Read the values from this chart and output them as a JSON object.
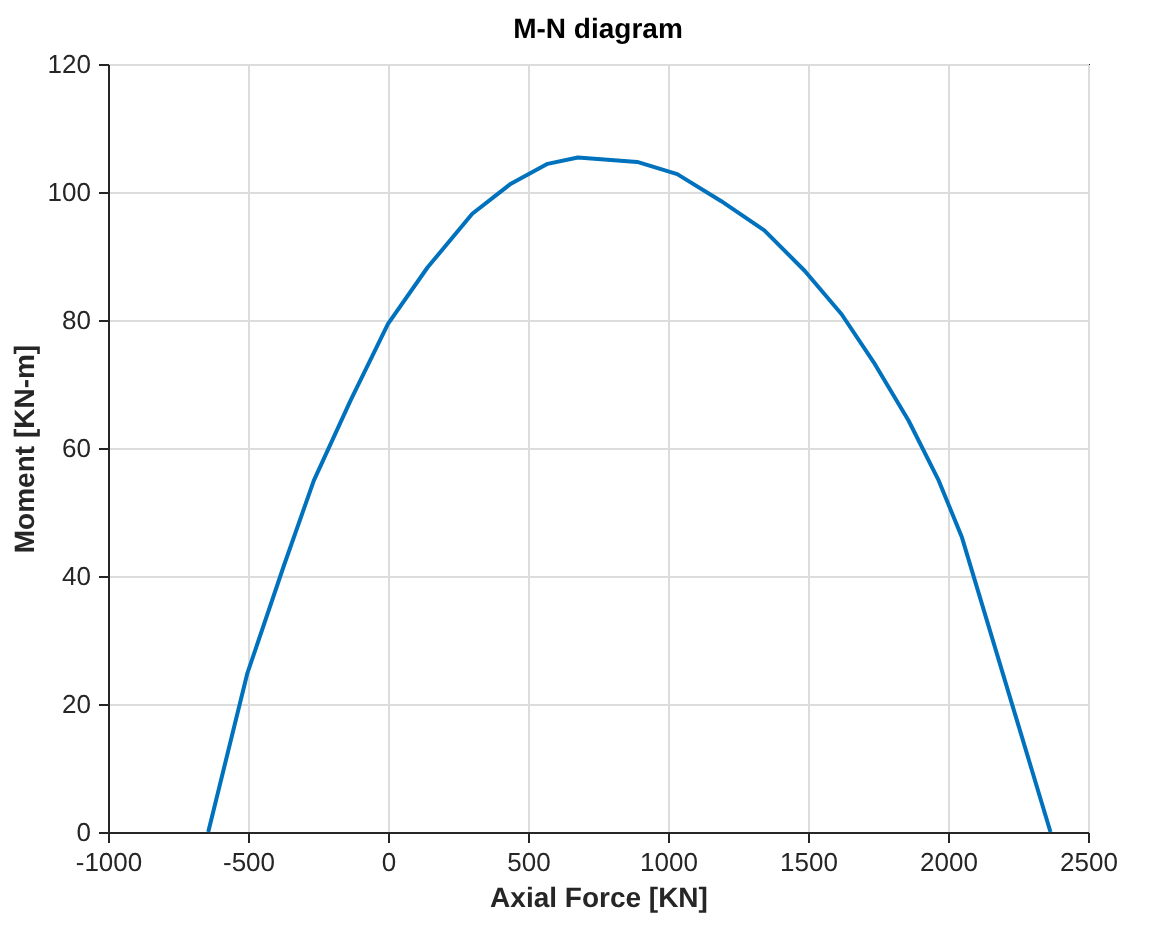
{
  "chart_data": {
    "type": "line",
    "title": "M-N diagram",
    "xlabel": "Axial Force [KN]",
    "ylabel": "Moment [KN-m]",
    "x": [
      -642,
      -503,
      -372,
      -265,
      -134,
      0,
      141,
      301,
      439,
      570,
      678,
      890,
      1033,
      1189,
      1344,
      1488,
      1620,
      1739,
      1859,
      1967,
      2050,
      2366
    ],
    "series": [
      {
        "color": "#0072bd",
        "values": [
          0,
          24.7,
          41.6,
          54.9,
          67.4,
          79.4,
          88.2,
          96.6,
          101.3,
          104.4,
          105.4,
          104.7,
          102.8,
          98.6,
          94.0,
          87.7,
          80.9,
          73.1,
          64.3,
          54.9,
          46.0,
          0
        ]
      }
    ],
    "xlim": [
      -1000,
      2500
    ],
    "xticks": [
      -1000,
      -500,
      0,
      500,
      1000,
      1500,
      2000,
      2500
    ],
    "ylim": [
      0,
      120
    ],
    "yticks": [
      0,
      20,
      40,
      60,
      80,
      100,
      120
    ],
    "grid": true,
    "line_style": "solid",
    "marker": "none"
  }
}
